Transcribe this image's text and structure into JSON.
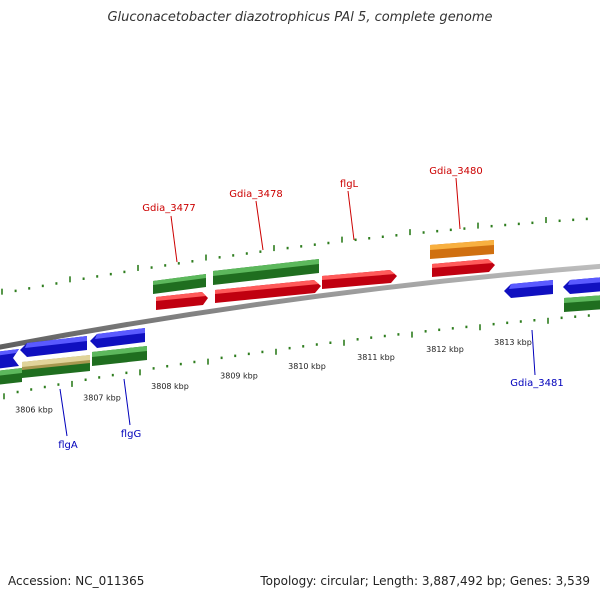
{
  "title": "Gluconacetobacter diazotrophicus PAl 5, complete genome",
  "accession": "Accession: NC_011365",
  "summary": "Topology: circular; Length: 3,887,492 bp; Genes: 3,539",
  "scale_labels": [
    "3806 kbp",
    "3807 kbp",
    "3808 kbp",
    "3809 kbp",
    "3810 kbp",
    "3811 kbp",
    "3812 kbp",
    "3813 kbp"
  ],
  "colors": {
    "backbone": "#8a8a8a",
    "ticks": "#2e7d1e",
    "red": "#e8141c",
    "green": "#2e8b2e",
    "blue": "#1a1ae0",
    "orange": "#f0901a",
    "tan": "#c8b87a",
    "label_top": "#cc0000",
    "label_bottom": "#0000bb"
  },
  "genes_top": [
    {
      "label": "Gdia_3477"
    },
    {
      "label": "Gdia_3478"
    },
    {
      "label": "flgL"
    },
    {
      "label": "Gdia_3480"
    }
  ],
  "genes_bottom": [
    {
      "label": "flgA"
    },
    {
      "label": "flgG"
    },
    {
      "label": "Gdia_3481"
    }
  ]
}
